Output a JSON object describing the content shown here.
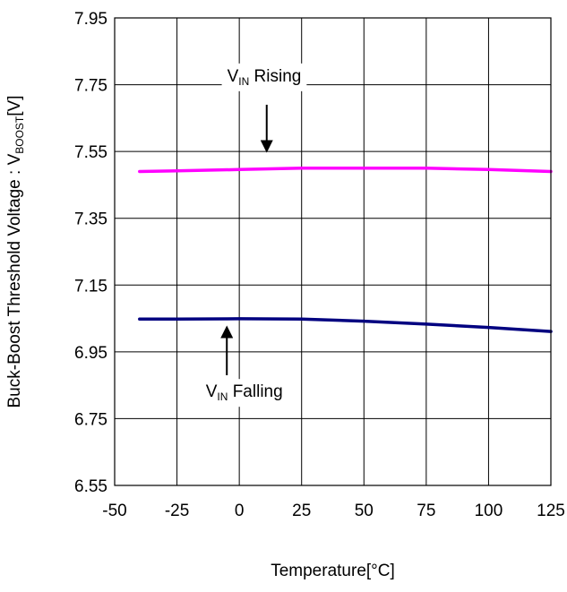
{
  "chart_data": {
    "type": "line",
    "title": "",
    "xlabel": "Temperature[°C]",
    "ylabel": {
      "prefix": "Buck-Boost Threshold Voltage : V",
      "sub": "BOOST",
      "suffix": "[V]"
    },
    "xlim": [
      -50,
      125
    ],
    "ylim": [
      6.55,
      7.95
    ],
    "x_ticks": [
      -50,
      -25,
      0,
      25,
      50,
      75,
      100,
      125
    ],
    "x_tick_labels": [
      "-50",
      "-25",
      "0",
      "25",
      "50",
      "75",
      "100",
      "125"
    ],
    "y_ticks": [
      6.55,
      6.75,
      6.95,
      7.15,
      7.35,
      7.55,
      7.75,
      7.95
    ],
    "y_tick_labels": [
      "6.55",
      "6.75",
      "6.95",
      "7.15",
      "7.35",
      "7.55",
      "7.75",
      "7.95"
    ],
    "grid": true,
    "series": [
      {
        "color": "#ff00ff",
        "x": [
          -40,
          -25,
          0,
          25,
          50,
          75,
          100,
          125
        ],
        "y": [
          7.49,
          7.492,
          7.496,
          7.5,
          7.5,
          7.5,
          7.496,
          7.49
        ]
      },
      {
        "color": "#000080",
        "x": [
          -40,
          -25,
          0,
          25,
          50,
          75,
          100,
          125
        ],
        "y": [
          7.048,
          7.048,
          7.049,
          7.048,
          7.042,
          7.033,
          7.023,
          7.011
        ]
      }
    ],
    "annotations": [
      {
        "prefix": "V",
        "sub": "IN",
        "suffix": " Rising",
        "text_x": 10,
        "text_y": 7.76,
        "arrow_x": 11,
        "arrow_from_y": 7.69,
        "arrow_to_y": 7.565
      },
      {
        "prefix": "V",
        "sub": "IN",
        "suffix": " Falling",
        "text_x": 2,
        "text_y": 6.815,
        "arrow_x": -5,
        "arrow_from_y": 6.88,
        "arrow_to_y": 7.01
      }
    ]
  }
}
